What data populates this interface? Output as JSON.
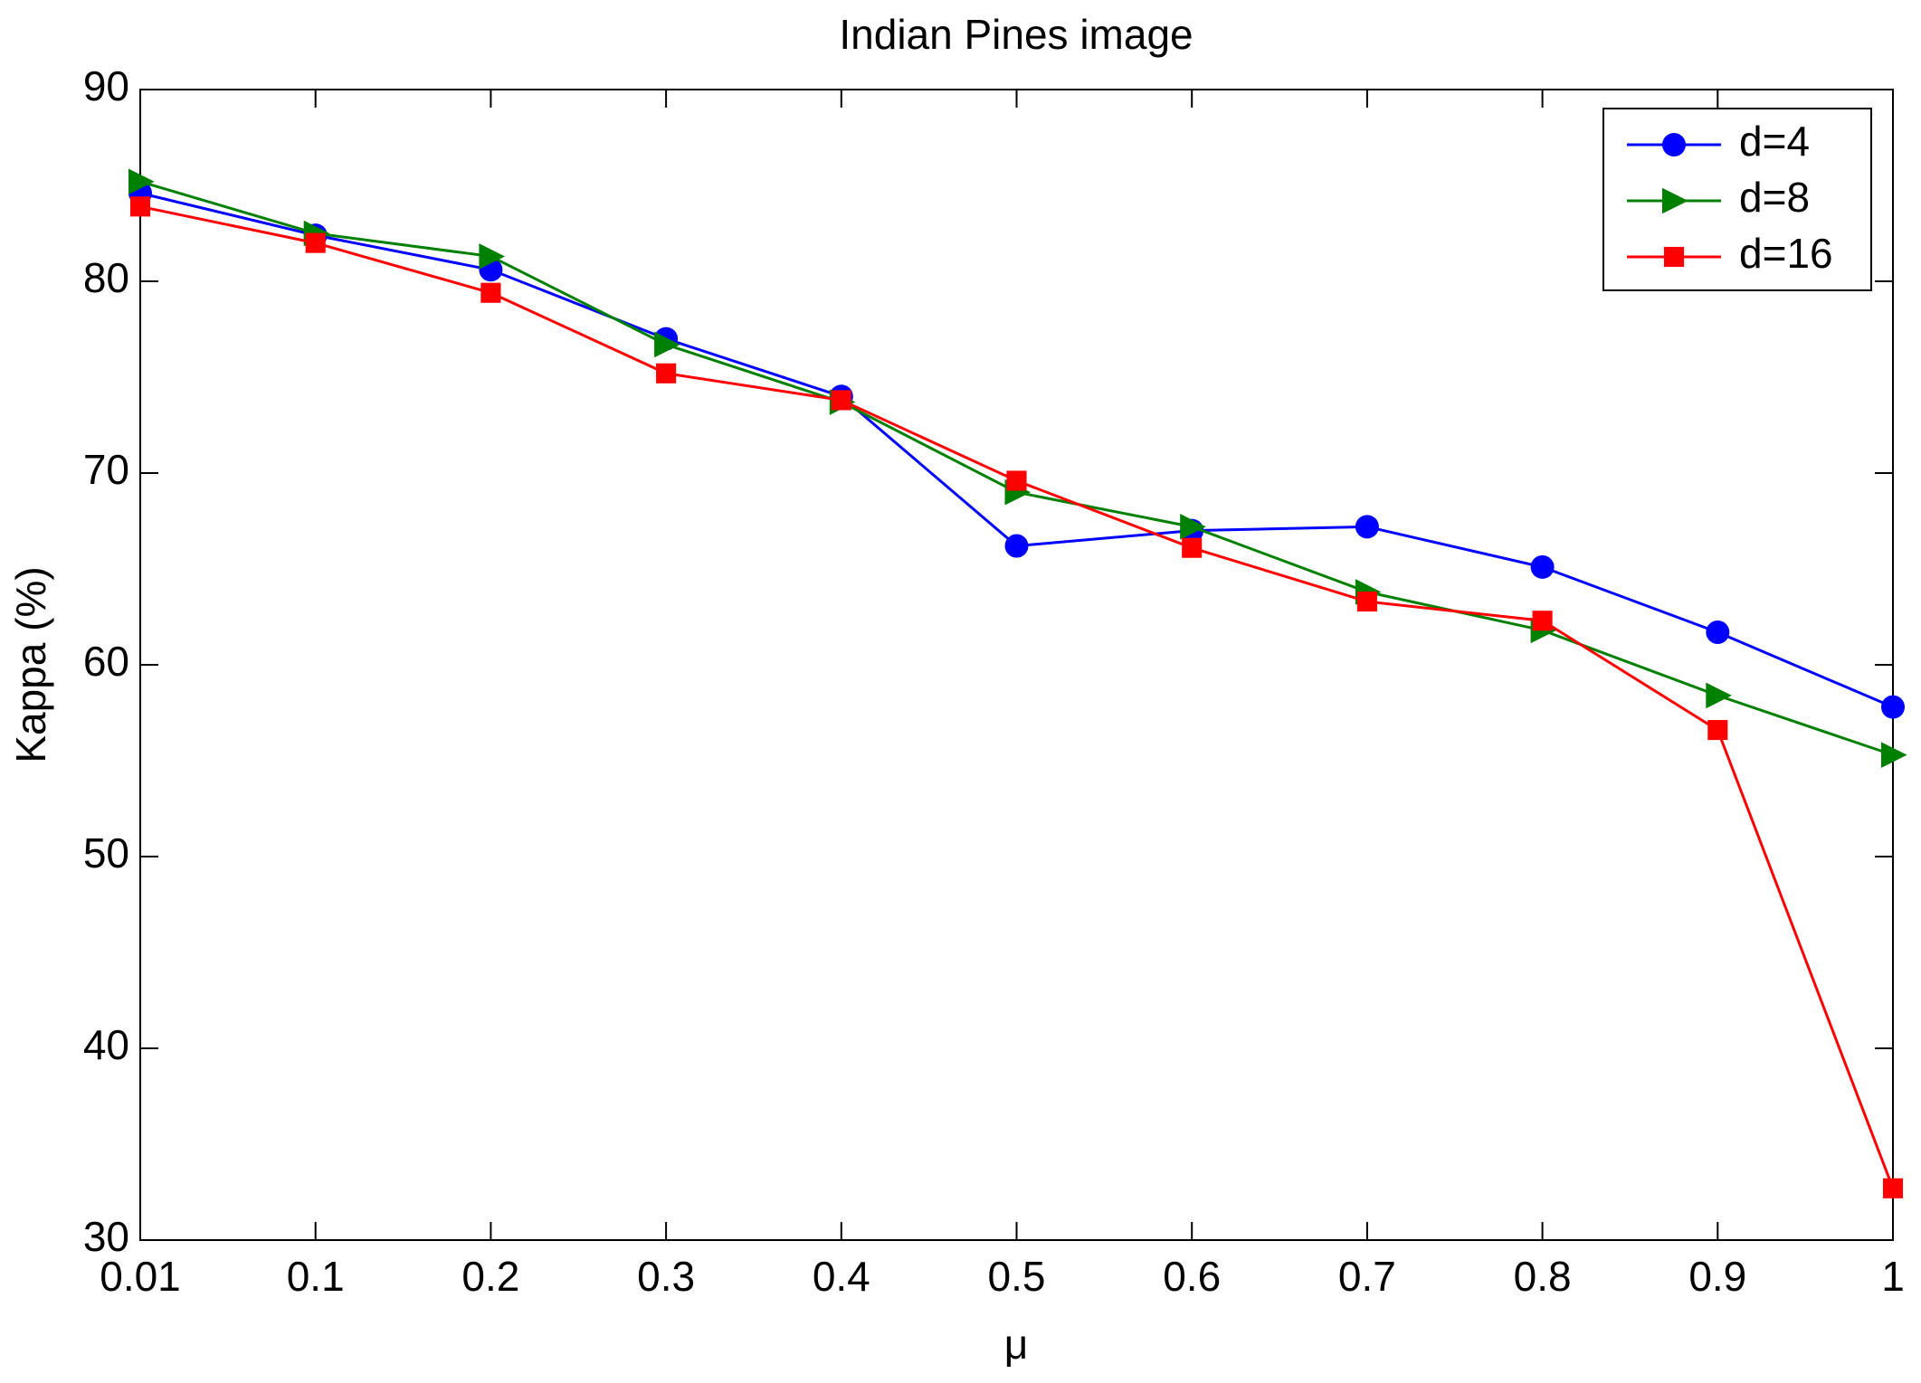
{
  "chart_data": {
    "type": "line",
    "title": "Indian Pines image",
    "x_label": "μ",
    "y_label": "Kappa (%)",
    "categories": [
      "0.01",
      "0.1",
      "0.2",
      "0.3",
      "0.4",
      "0.5",
      "0.6",
      "0.7",
      "0.8",
      "0.9",
      "1"
    ],
    "series": [
      {
        "name": "d=4",
        "color": "#0000ff",
        "marker": "circle",
        "values": [
          84.6,
          82.4,
          80.6,
          77.0,
          74.0,
          66.2,
          67.0,
          67.2,
          65.1,
          61.7,
          57.8
        ]
      },
      {
        "name": "d=8",
        "color": "#008000",
        "marker": "triangle-right",
        "values": [
          85.2,
          82.5,
          81.3,
          76.7,
          73.7,
          69.0,
          67.2,
          63.8,
          61.8,
          58.4,
          55.3
        ]
      },
      {
        "name": "d=16",
        "color": "#ff0000",
        "marker": "square",
        "values": [
          83.9,
          82.0,
          79.4,
          75.2,
          73.8,
          69.6,
          66.1,
          63.3,
          62.3,
          56.6,
          32.7
        ]
      }
    ],
    "ylim": [
      30,
      90
    ],
    "yticks": [
      30,
      40,
      50,
      60,
      70,
      80,
      90
    ],
    "grid": false,
    "legend": "northeast"
  }
}
